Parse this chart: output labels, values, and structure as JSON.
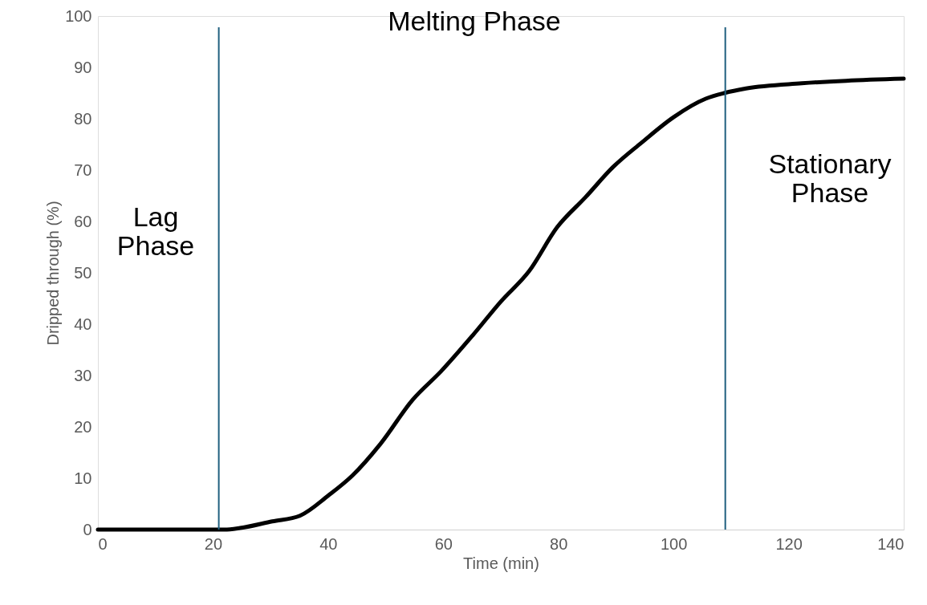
{
  "chart_data": {
    "type": "line",
    "xlabel": "Time (min)",
    "ylabel": "Dripped through (%)",
    "xlim": [
      0,
      140
    ],
    "xticks": [
      0,
      20,
      40,
      60,
      80,
      100,
      120,
      140
    ],
    "ylim": [
      0,
      100
    ],
    "yticks": [
      0,
      10,
      20,
      30,
      40,
      50,
      60,
      70,
      80,
      90,
      100
    ],
    "grid": false,
    "marker": "none",
    "line_style": "solid",
    "series": [
      {
        "color": "#000000",
        "x": [
          0,
          10,
          20,
          22,
          24.7,
          30.3,
          35.1,
          40,
          44.2,
          49.1,
          54.7,
          59.6,
          65.1,
          70,
          74.9,
          79.8,
          84.7,
          89.5,
          94.4,
          100,
          105.6,
          108.8,
          112.6,
          122.3,
          130,
          140
        ],
        "values": [
          0,
          0,
          0,
          0,
          0.3,
          1.6,
          2.7,
          6.6,
          10.5,
          16.7,
          25.3,
          30.8,
          37.8,
          44.4,
          50.3,
          58.9,
          64.7,
          70.6,
          75.3,
          80.3,
          83.9,
          85,
          85.9,
          86.9,
          87.4,
          87.8
        ]
      }
    ],
    "ref_lines": [
      {
        "axis": "x",
        "value": 21,
        "color": "#1f5f7f"
      },
      {
        "axis": "x",
        "value": 109,
        "color": "#1f5f7f"
      }
    ],
    "annotations": [
      "Lag\nPhase",
      "Melting Phase",
      "Stationary\nPhase"
    ]
  }
}
